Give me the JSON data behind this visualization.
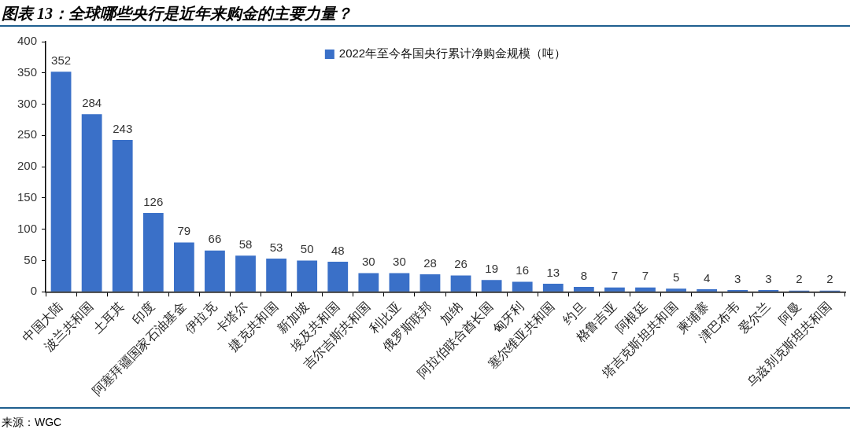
{
  "chart_data": {
    "type": "bar",
    "title": "图表 13：全球哪些央行是近年来购金的主要力量？",
    "categories": [
      "中国大陆",
      "波兰共和国",
      "土耳其",
      "印度",
      "阿塞拜疆国家石油基金",
      "伊拉克",
      "卡塔尔",
      "捷克共和国",
      "新加坡",
      "埃及共和国",
      "吉尔吉斯共和国",
      "利比亚",
      "俄罗斯联邦",
      "加纳",
      "阿拉伯联合酋长国",
      "匈牙利",
      "塞尔维亚共和国",
      "约旦",
      "格鲁吉亚",
      "阿根廷",
      "塔吉克斯坦共和国",
      "柬埔寨",
      "津巴布韦",
      "爱尔兰",
      "阿曼",
      "乌兹别克斯坦共和国"
    ],
    "series": [
      {
        "name": "2022年至今各国央行累计净购金规模（吨）",
        "color": "#3a70c8",
        "values": [
          352,
          284,
          243,
          126,
          79,
          66,
          58,
          53,
          50,
          48,
          30,
          30,
          28,
          26,
          19,
          16,
          13,
          8,
          7,
          7,
          5,
          4,
          3,
          3,
          2,
          2
        ]
      }
    ],
    "ylim": [
      0,
      400
    ],
    "yticks": [
      0,
      50,
      100,
      150,
      200,
      250,
      300,
      350,
      400
    ],
    "grid": false,
    "legend": "top",
    "data_labels": true,
    "annotations": [
      "来源：WGC"
    ]
  }
}
